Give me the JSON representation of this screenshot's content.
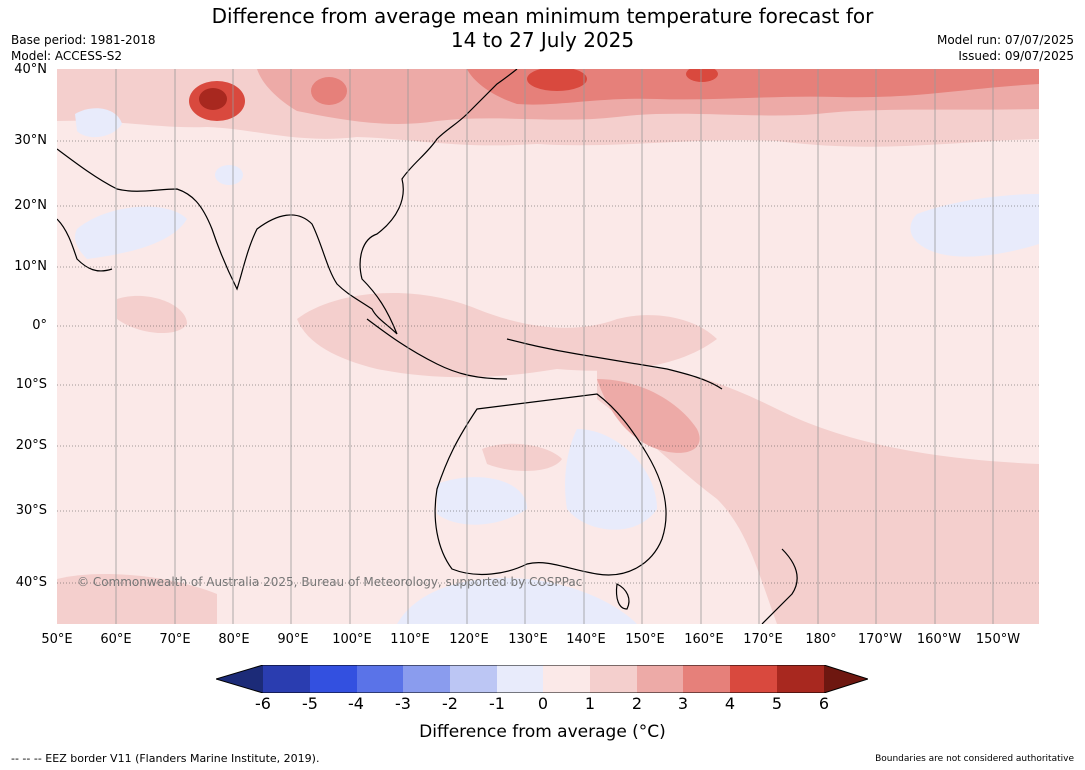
{
  "title_line1": "Difference from average mean minimum temperature forecast for",
  "title_line2": "14 to 27 July 2025",
  "base_period": "Base period: 1981-2018",
  "model": "Model: ACCESS-S2",
  "model_run": "Model run: 07/07/2025",
  "issued": "Issued: 09/07/2025",
  "copyright": "© Commonwealth of Australia 2025, Bureau of Meteorology, supported by COSPPac",
  "lat_labels": [
    "40°N",
    "30°N",
    "20°N",
    "10°N",
    "0°",
    "10°S",
    "20°S",
    "30°S",
    "40°S"
  ],
  "lon_labels": [
    "50°E",
    "60°E",
    "70°E",
    "80°E",
    "90°E",
    "100°E",
    "110°E",
    "120°E",
    "130°E",
    "140°E",
    "150°E",
    "160°E",
    "170°E",
    "180°",
    "170°W",
    "160°W",
    "150°W"
  ],
  "colorbar": {
    "ticks": [
      "-6",
      "-5",
      "-4",
      "-3",
      "-2",
      "-1",
      "0",
      "1",
      "2",
      "3",
      "4",
      "5",
      "6"
    ],
    "colors": [
      "#1c2b78",
      "#2a3db0",
      "#3350e0",
      "#5a73e8",
      "#8a9cee",
      "#bcc6f4",
      "#e8ebfb",
      "#fbe9e8",
      "#f4cfcd",
      "#edaaa7",
      "#e6807a",
      "#d9493e",
      "#a8281f",
      "#6e1710"
    ],
    "label": "Difference from average (°C)"
  },
  "footer_left": "-- -- -- EEZ border V11 (Flanders Marine Institute, 2019).",
  "footer_right": "Boundaries are not considered authoritative"
}
